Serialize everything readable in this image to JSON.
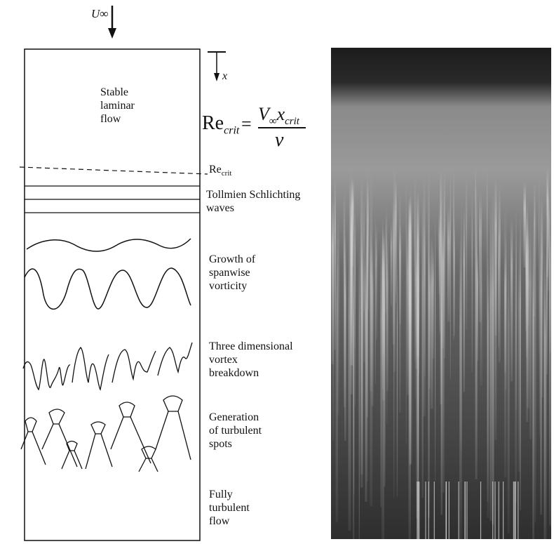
{
  "diagram": {
    "freestream_label": "U∞",
    "x_axis_label": "x",
    "stages": [
      {
        "id": "stable",
        "text": "Stable\nlaminar\nflow"
      },
      {
        "id": "ts",
        "text": "Tollmien Schlichting\nwaves"
      },
      {
        "id": "growth",
        "text": "Growth of\nspanwise\nvorticity"
      },
      {
        "id": "breakdown",
        "text": "Three dimensional\nvortex\nbreakdown"
      },
      {
        "id": "spots",
        "text": "Generation\nof turbulent\nspots"
      },
      {
        "id": "turbulent",
        "text": "Fully\nturbulent\nflow"
      }
    ],
    "critical": {
      "re_symbol": "Re",
      "re_subscript": "crit",
      "equals": "=",
      "numerator_v": "V",
      "numerator_v_sub": "∞",
      "numerator_x": "x",
      "numerator_x_sub": "crit",
      "denominator": "ν",
      "line_label_re": "Re",
      "line_label_sub": "crit"
    }
  },
  "photo": {
    "description_colors": {
      "dark": "#1a1a1a",
      "mid": "#6e6e6e",
      "light": "#bdbdbd"
    }
  }
}
